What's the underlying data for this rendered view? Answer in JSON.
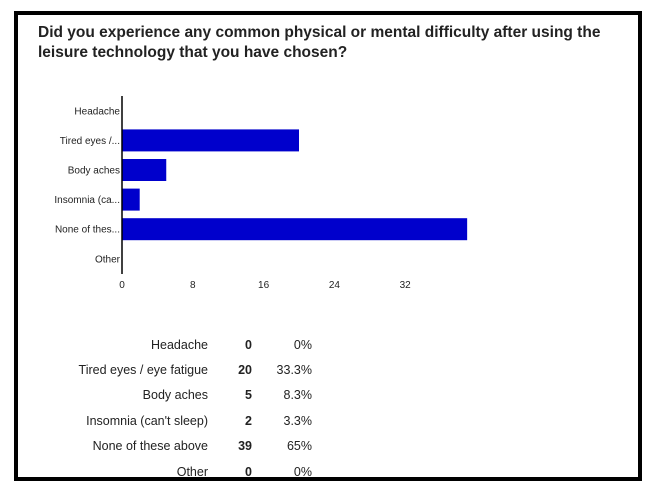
{
  "chart_data": {
    "type": "bar",
    "orientation": "horizontal",
    "title": "Did you experience any common physical or mental difficulty after using the leisure technology that you have chosen?",
    "categories": [
      "Headache",
      "Tired eyes /...",
      "Body aches",
      "Insomnia (ca...",
      "None of thes...",
      "Other"
    ],
    "values": [
      0,
      20,
      5,
      2,
      39,
      0
    ],
    "xticks": [
      0,
      8,
      16,
      24,
      32
    ],
    "xlim": [
      0,
      40
    ],
    "bar_color": "#0000cc",
    "grid": false,
    "legend": "none"
  },
  "table": {
    "rows": [
      {
        "label": "Headache",
        "count": "0",
        "percent": "0%"
      },
      {
        "label": "Tired eyes / eye fatigue",
        "count": "20",
        "percent": "33.3%"
      },
      {
        "label": "Body aches",
        "count": "5",
        "percent": "8.3%"
      },
      {
        "label": "Insomnia (can't sleep)",
        "count": "2",
        "percent": "3.3%"
      },
      {
        "label": "None of these above",
        "count": "39",
        "percent": "65%"
      },
      {
        "label": "Other",
        "count": "0",
        "percent": "0%"
      }
    ]
  }
}
